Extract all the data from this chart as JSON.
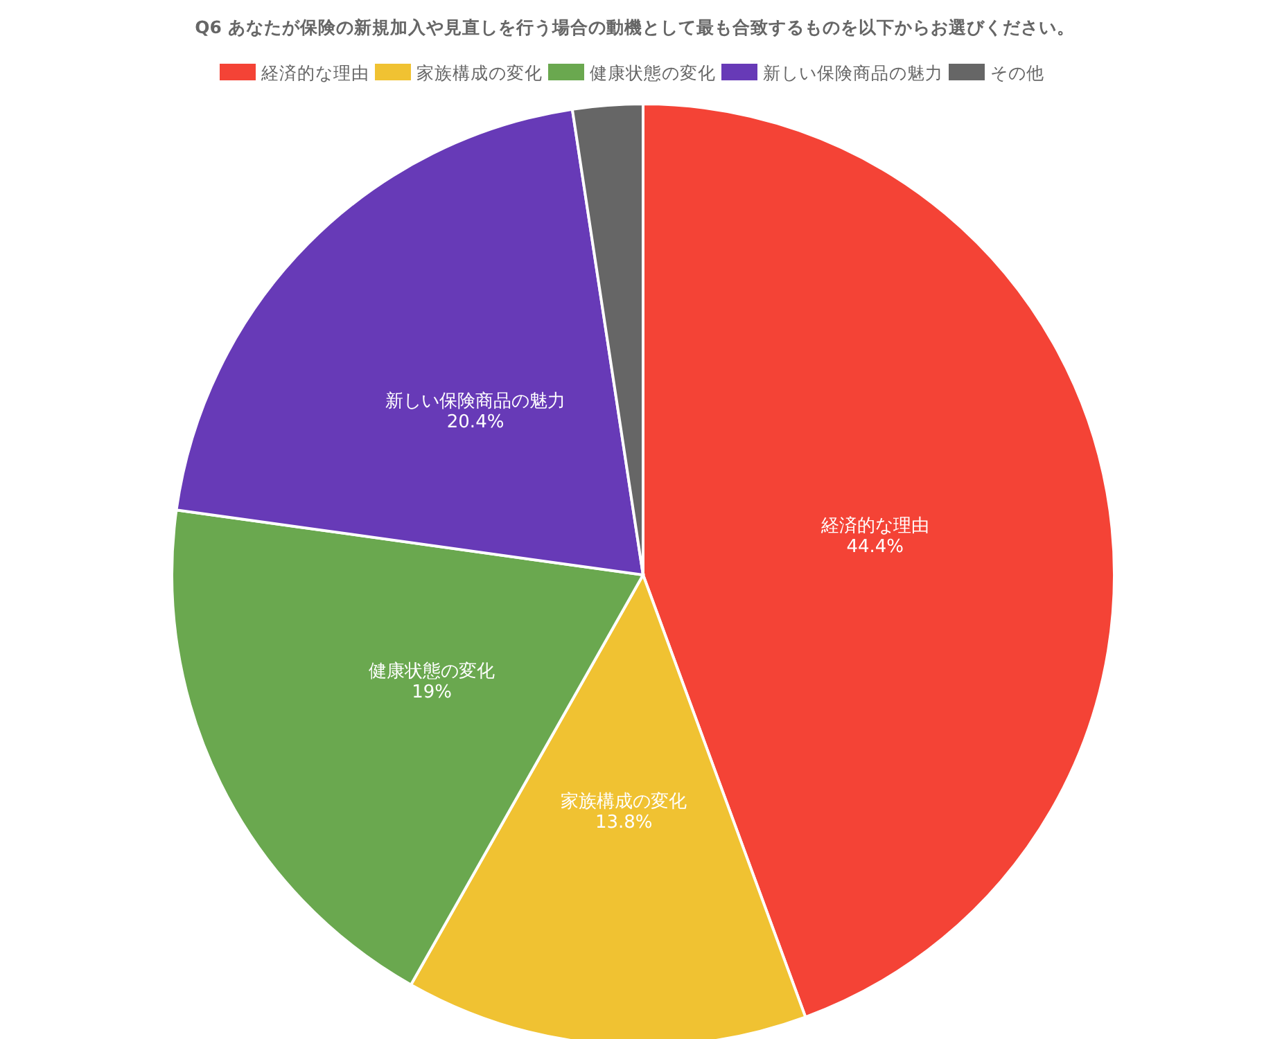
{
  "chart_data": {
    "type": "pie",
    "title": "Q6 あなたが保険の新規加入や見直しを行う場合の動機として最も合致するものを以下からお選びください。",
    "categories": [
      "経済的な理由",
      "家族構成の変化",
      "健康状態の変化",
      "新しい保険商品の魅力",
      "その他"
    ],
    "values": [
      44.4,
      13.8,
      19,
      20.4,
      2.4
    ],
    "colors": [
      "#f44336",
      "#f0c232",
      "#6aa84f",
      "#673ab7",
      "#666666"
    ],
    "value_labels": [
      "44.4%",
      "13.8%",
      "19%",
      "20.4%",
      null
    ],
    "legend": "top"
  }
}
